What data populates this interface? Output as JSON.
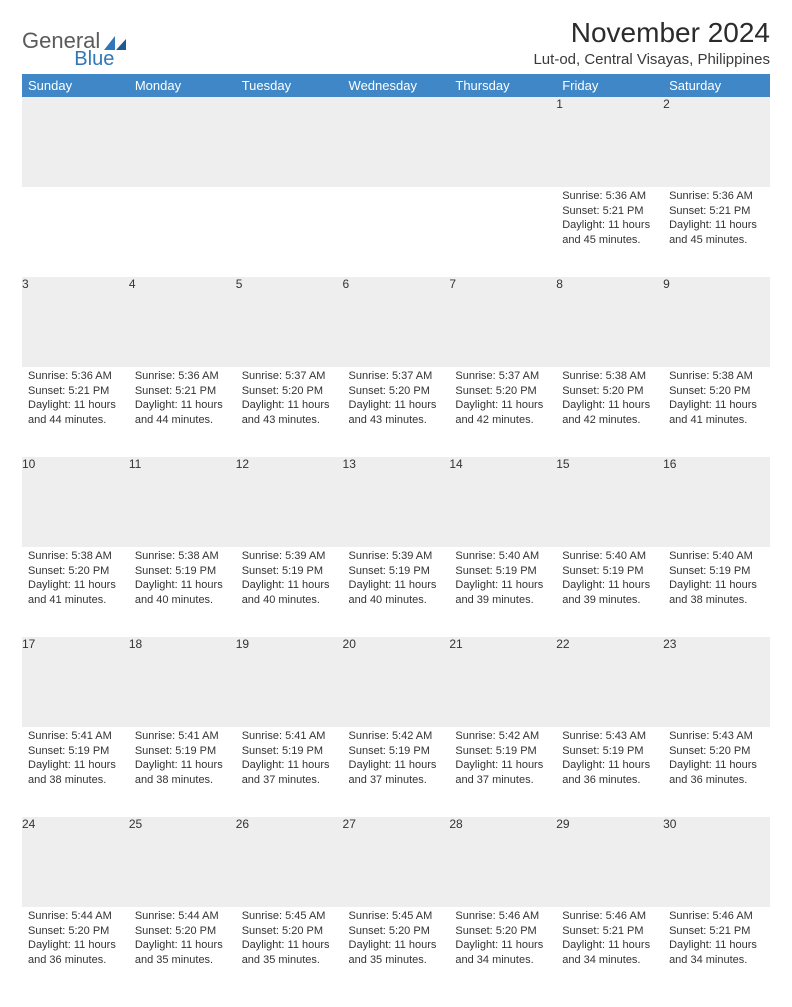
{
  "logo": {
    "text1": "General",
    "text2": "Blue"
  },
  "title": "November 2024",
  "location": "Lut-od, Central Visayas, Philippines",
  "colors": {
    "header_bg": "#3f87c7",
    "header_text": "#ffffff",
    "daynum_bg": "#eeeeee",
    "border": "#3f87c7",
    "text": "#333333",
    "logo_gray": "#5b5b5b",
    "logo_blue": "#2f77b8"
  },
  "weekdays": [
    "Sunday",
    "Monday",
    "Tuesday",
    "Wednesday",
    "Thursday",
    "Friday",
    "Saturday"
  ],
  "weeks": [
    [
      null,
      null,
      null,
      null,
      null,
      {
        "n": "1",
        "sunrise": "Sunrise: 5:36 AM",
        "sunset": "Sunset: 5:21 PM",
        "day1": "Daylight: 11 hours",
        "day2": "and 45 minutes."
      },
      {
        "n": "2",
        "sunrise": "Sunrise: 5:36 AM",
        "sunset": "Sunset: 5:21 PM",
        "day1": "Daylight: 11 hours",
        "day2": "and 45 minutes."
      }
    ],
    [
      {
        "n": "3",
        "sunrise": "Sunrise: 5:36 AM",
        "sunset": "Sunset: 5:21 PM",
        "day1": "Daylight: 11 hours",
        "day2": "and 44 minutes."
      },
      {
        "n": "4",
        "sunrise": "Sunrise: 5:36 AM",
        "sunset": "Sunset: 5:21 PM",
        "day1": "Daylight: 11 hours",
        "day2": "and 44 minutes."
      },
      {
        "n": "5",
        "sunrise": "Sunrise: 5:37 AM",
        "sunset": "Sunset: 5:20 PM",
        "day1": "Daylight: 11 hours",
        "day2": "and 43 minutes."
      },
      {
        "n": "6",
        "sunrise": "Sunrise: 5:37 AM",
        "sunset": "Sunset: 5:20 PM",
        "day1": "Daylight: 11 hours",
        "day2": "and 43 minutes."
      },
      {
        "n": "7",
        "sunrise": "Sunrise: 5:37 AM",
        "sunset": "Sunset: 5:20 PM",
        "day1": "Daylight: 11 hours",
        "day2": "and 42 minutes."
      },
      {
        "n": "8",
        "sunrise": "Sunrise: 5:38 AM",
        "sunset": "Sunset: 5:20 PM",
        "day1": "Daylight: 11 hours",
        "day2": "and 42 minutes."
      },
      {
        "n": "9",
        "sunrise": "Sunrise: 5:38 AM",
        "sunset": "Sunset: 5:20 PM",
        "day1": "Daylight: 11 hours",
        "day2": "and 41 minutes."
      }
    ],
    [
      {
        "n": "10",
        "sunrise": "Sunrise: 5:38 AM",
        "sunset": "Sunset: 5:20 PM",
        "day1": "Daylight: 11 hours",
        "day2": "and 41 minutes."
      },
      {
        "n": "11",
        "sunrise": "Sunrise: 5:38 AM",
        "sunset": "Sunset: 5:19 PM",
        "day1": "Daylight: 11 hours",
        "day2": "and 40 minutes."
      },
      {
        "n": "12",
        "sunrise": "Sunrise: 5:39 AM",
        "sunset": "Sunset: 5:19 PM",
        "day1": "Daylight: 11 hours",
        "day2": "and 40 minutes."
      },
      {
        "n": "13",
        "sunrise": "Sunrise: 5:39 AM",
        "sunset": "Sunset: 5:19 PM",
        "day1": "Daylight: 11 hours",
        "day2": "and 40 minutes."
      },
      {
        "n": "14",
        "sunrise": "Sunrise: 5:40 AM",
        "sunset": "Sunset: 5:19 PM",
        "day1": "Daylight: 11 hours",
        "day2": "and 39 minutes."
      },
      {
        "n": "15",
        "sunrise": "Sunrise: 5:40 AM",
        "sunset": "Sunset: 5:19 PM",
        "day1": "Daylight: 11 hours",
        "day2": "and 39 minutes."
      },
      {
        "n": "16",
        "sunrise": "Sunrise: 5:40 AM",
        "sunset": "Sunset: 5:19 PM",
        "day1": "Daylight: 11 hours",
        "day2": "and 38 minutes."
      }
    ],
    [
      {
        "n": "17",
        "sunrise": "Sunrise: 5:41 AM",
        "sunset": "Sunset: 5:19 PM",
        "day1": "Daylight: 11 hours",
        "day2": "and 38 minutes."
      },
      {
        "n": "18",
        "sunrise": "Sunrise: 5:41 AM",
        "sunset": "Sunset: 5:19 PM",
        "day1": "Daylight: 11 hours",
        "day2": "and 38 minutes."
      },
      {
        "n": "19",
        "sunrise": "Sunrise: 5:41 AM",
        "sunset": "Sunset: 5:19 PM",
        "day1": "Daylight: 11 hours",
        "day2": "and 37 minutes."
      },
      {
        "n": "20",
        "sunrise": "Sunrise: 5:42 AM",
        "sunset": "Sunset: 5:19 PM",
        "day1": "Daylight: 11 hours",
        "day2": "and 37 minutes."
      },
      {
        "n": "21",
        "sunrise": "Sunrise: 5:42 AM",
        "sunset": "Sunset: 5:19 PM",
        "day1": "Daylight: 11 hours",
        "day2": "and 37 minutes."
      },
      {
        "n": "22",
        "sunrise": "Sunrise: 5:43 AM",
        "sunset": "Sunset: 5:19 PM",
        "day1": "Daylight: 11 hours",
        "day2": "and 36 minutes."
      },
      {
        "n": "23",
        "sunrise": "Sunrise: 5:43 AM",
        "sunset": "Sunset: 5:20 PM",
        "day1": "Daylight: 11 hours",
        "day2": "and 36 minutes."
      }
    ],
    [
      {
        "n": "24",
        "sunrise": "Sunrise: 5:44 AM",
        "sunset": "Sunset: 5:20 PM",
        "day1": "Daylight: 11 hours",
        "day2": "and 36 minutes."
      },
      {
        "n": "25",
        "sunrise": "Sunrise: 5:44 AM",
        "sunset": "Sunset: 5:20 PM",
        "day1": "Daylight: 11 hours",
        "day2": "and 35 minutes."
      },
      {
        "n": "26",
        "sunrise": "Sunrise: 5:45 AM",
        "sunset": "Sunset: 5:20 PM",
        "day1": "Daylight: 11 hours",
        "day2": "and 35 minutes."
      },
      {
        "n": "27",
        "sunrise": "Sunrise: 5:45 AM",
        "sunset": "Sunset: 5:20 PM",
        "day1": "Daylight: 11 hours",
        "day2": "and 35 minutes."
      },
      {
        "n": "28",
        "sunrise": "Sunrise: 5:46 AM",
        "sunset": "Sunset: 5:20 PM",
        "day1": "Daylight: 11 hours",
        "day2": "and 34 minutes."
      },
      {
        "n": "29",
        "sunrise": "Sunrise: 5:46 AM",
        "sunset": "Sunset: 5:21 PM",
        "day1": "Daylight: 11 hours",
        "day2": "and 34 minutes."
      },
      {
        "n": "30",
        "sunrise": "Sunrise: 5:46 AM",
        "sunset": "Sunset: 5:21 PM",
        "day1": "Daylight: 11 hours",
        "day2": "and 34 minutes."
      }
    ]
  ]
}
